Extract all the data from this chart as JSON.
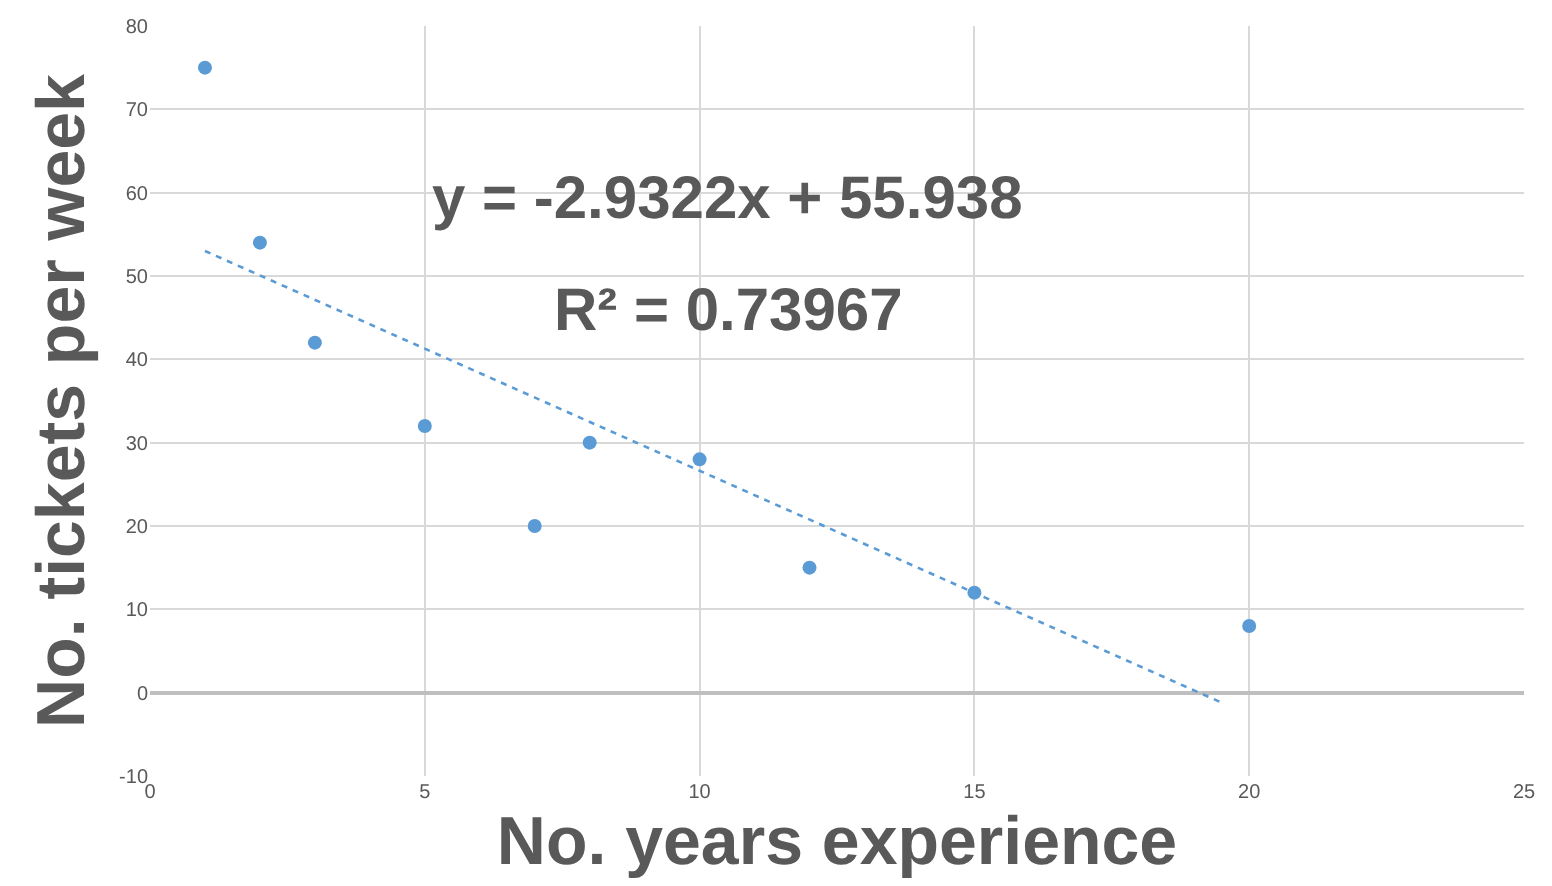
{
  "chart_data": {
    "type": "scatter",
    "xlabel": "No. years experience",
    "ylabel": "No. tickets per week",
    "annotations": [
      "y = -2.9322x + 55.938",
      "R² = 0.73967"
    ],
    "series": [
      {
        "color": "#5b9bd5",
        "marker": "circle",
        "x": [
          1,
          2,
          3,
          5,
          7,
          8,
          10,
          12,
          15,
          20
        ],
        "values": [
          75,
          54,
          42,
          32,
          20,
          30,
          28,
          15,
          12,
          8
        ]
      },
      {
        "type": "line",
        "color": "#5b9bd5",
        "line_style": "dotted",
        "marker": "none",
        "x": [
          1,
          19.5
        ],
        "values": [
          53.0,
          -1.2
        ]
      }
    ],
    "xlim": [
      0,
      25
    ],
    "xticks": [
      0,
      5,
      10,
      15,
      20,
      25
    ],
    "ylim": [
      -10,
      80
    ],
    "yticks": [
      -10,
      0,
      10,
      20,
      30,
      40,
      50,
      60,
      70,
      80
    ],
    "grid": true
  }
}
